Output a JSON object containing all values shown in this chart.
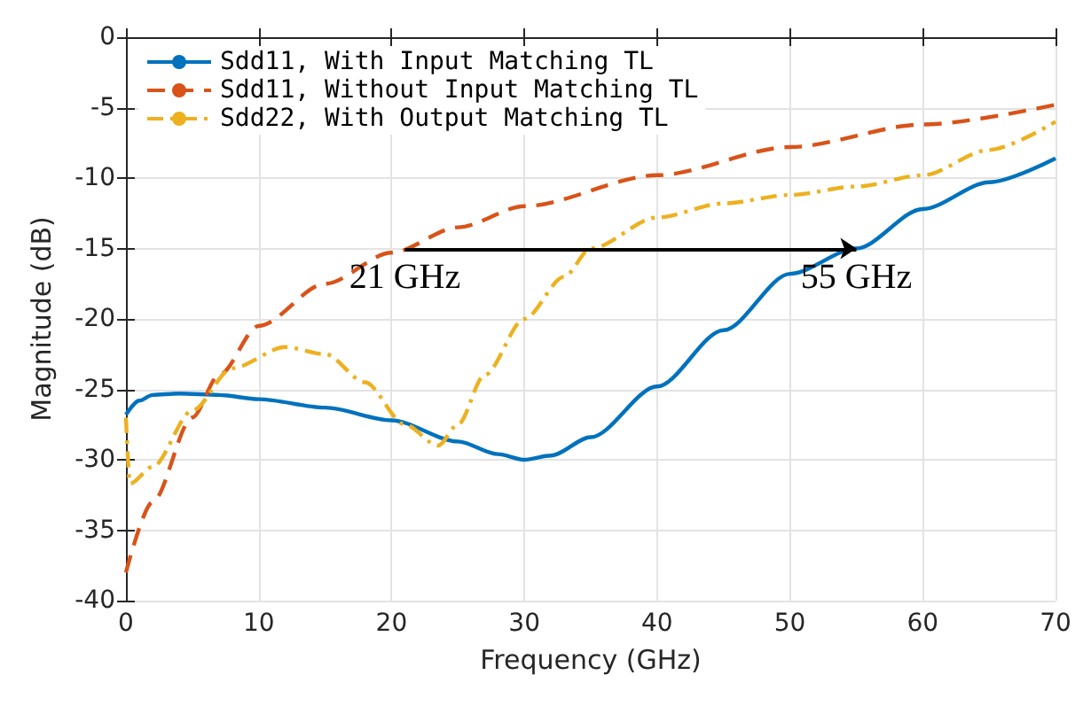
{
  "chart_data": {
    "type": "line",
    "xlabel": "Frequency (GHz)",
    "ylabel": "Magnitude (dB)",
    "xlim": [
      0,
      70
    ],
    "xticks": [
      0,
      10,
      20,
      30,
      40,
      50,
      60,
      70
    ],
    "ylim": [
      -40,
      0
    ],
    "yticks": [
      -40,
      -35,
      -30,
      -25,
      -20,
      -15,
      -10,
      -5,
      0
    ],
    "grid": true,
    "legend": "top left",
    "marker": "none",
    "series": [
      {
        "name": "Sdd11, With Input Matching TL",
        "color": "#0072bd",
        "line_style": "solid",
        "x": [
          0,
          1,
          2,
          4,
          7,
          10,
          15,
          20,
          25,
          28,
          30,
          32,
          35,
          40,
          45,
          50,
          55,
          60,
          65,
          70
        ],
        "values": [
          -26.8,
          -25.8,
          -25.4,
          -25.3,
          -25.4,
          -25.7,
          -26.3,
          -27.2,
          -28.7,
          -29.6,
          -30,
          -29.7,
          -28.4,
          -24.8,
          -20.8,
          -16.8,
          -15,
          -12.2,
          -10.3,
          -8.6
        ]
      },
      {
        "name": "Sdd11, Without Input Matching TL",
        "color": "#d95319",
        "line_style": "dashed",
        "x": [
          0,
          2,
          5,
          7,
          10,
          15,
          20,
          25,
          30,
          40,
          50,
          60,
          70
        ],
        "values": [
          -38,
          -33,
          -27,
          -24,
          -20.5,
          -17.5,
          -15.3,
          -13.5,
          -12,
          -9.8,
          -7.8,
          -6.2,
          -4.8
        ]
      },
      {
        "name": "Sdd22, With Output Matching TL",
        "color": "#edb120",
        "line_style": "dashdot",
        "x": [
          0,
          0.3,
          2,
          5,
          8,
          12,
          15,
          18,
          21,
          23.5,
          25,
          27,
          30,
          33,
          35,
          40,
          45,
          50,
          55,
          60,
          65,
          70
        ],
        "values": [
          -27,
          -31.7,
          -30.5,
          -26.5,
          -23.5,
          -22,
          -22.5,
          -24.5,
          -27.5,
          -29,
          -27.5,
          -24,
          -20,
          -17,
          -15,
          -12.8,
          -11.8,
          -11.2,
          -10.6,
          -9.8,
          -8,
          -6
        ]
      }
    ],
    "annotations": [
      {
        "text": "21 GHz",
        "x": 21,
        "y": -15
      },
      {
        "text": "55 GHz",
        "x": 55,
        "y": -15
      }
    ]
  }
}
